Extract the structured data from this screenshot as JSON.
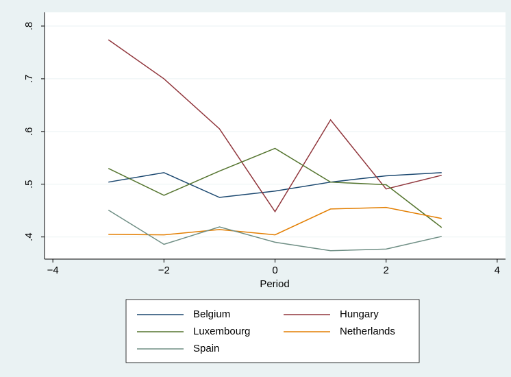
{
  "chart_data": {
    "type": "line",
    "x_label": "Period",
    "x": [
      -3,
      -2,
      -1,
      0,
      1,
      2,
      3
    ],
    "series": [
      {
        "name": "Belgium",
        "color": "#1a476f",
        "values": [
          0.504,
          0.522,
          0.475,
          0.487,
          0.504,
          0.516,
          0.522
        ]
      },
      {
        "name": "Hungary",
        "color": "#90353b",
        "values": [
          0.774,
          0.7,
          0.605,
          0.448,
          0.622,
          0.491,
          0.517
        ]
      },
      {
        "name": "Luxembourg",
        "color": "#55752f",
        "values": [
          0.53,
          0.479,
          0.525,
          0.568,
          0.504,
          0.499,
          0.418
        ]
      },
      {
        "name": "Netherlands",
        "color": "#e37e00",
        "values": [
          0.405,
          0.404,
          0.414,
          0.404,
          0.453,
          0.456,
          0.435
        ]
      },
      {
        "name": "Spain",
        "color": "#6e8e84",
        "values": [
          0.451,
          0.386,
          0.419,
          0.39,
          0.374,
          0.377,
          0.401
        ]
      }
    ],
    "xlim": [
      -4.15,
      4.15
    ],
    "xticks": [
      {
        "value": -4,
        "label": "−4"
      },
      {
        "value": -2,
        "label": "−2"
      },
      0,
      2,
      4
    ],
    "ylim": [
      0.358,
      0.826
    ],
    "yticks": [
      {
        "value": 0.4,
        "label": ".4"
      },
      {
        "value": 0.5,
        "label": ".5"
      },
      {
        "value": 0.6,
        "label": ".6"
      },
      {
        "value": 0.7,
        "label": ".7"
      },
      {
        "value": 0.8,
        "label": ".8"
      }
    ],
    "grid": true,
    "legend": "bottom"
  }
}
